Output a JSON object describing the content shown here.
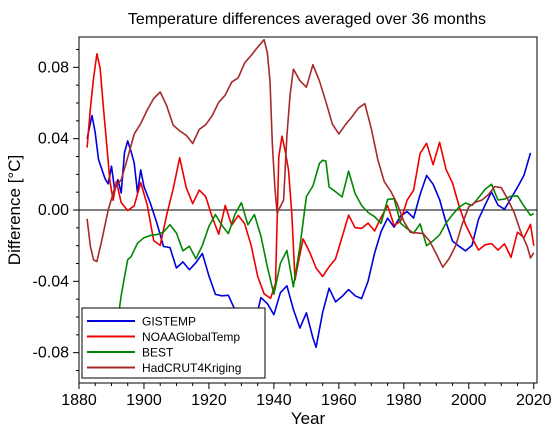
{
  "chart_data": {
    "type": "line",
    "title": "Temperature differences averaged over 36 months",
    "xlabel": "Year",
    "ylabel": "Difference [°C]",
    "xlim": [
      1880,
      2021
    ],
    "ylim": [
      -0.097,
      0.097
    ],
    "x_ticks": [
      1880,
      1900,
      1920,
      1940,
      1960,
      1980,
      2000,
      2020
    ],
    "y_ticks": [
      -0.08,
      -0.04,
      0.0,
      0.04,
      0.08
    ],
    "y_tick_labels": [
      "-0.08",
      "-0.04",
      "0.00",
      "0.04",
      "0.08"
    ],
    "zero_line": true,
    "grid": false,
    "legend_position": "bottom-left",
    "series": [
      {
        "name": "GISTEMP",
        "color": "#0000dd",
        "points": [
          [
            1882.5,
            0.04
          ],
          [
            1884,
            0.052
          ],
          [
            1885,
            0.043
          ],
          [
            1886,
            0.03
          ],
          [
            1888,
            0.02
          ],
          [
            1889,
            0.013
          ],
          [
            1890,
            0.025
          ],
          [
            1891,
            0.012
          ],
          [
            1892,
            0.015
          ],
          [
            1893,
            0.012
          ],
          [
            1894,
            0.03
          ],
          [
            1895,
            0.04
          ],
          [
            1896,
            0.033
          ],
          [
            1897,
            0.025
          ],
          [
            1898,
            0.012
          ],
          [
            1899,
            0.02
          ],
          [
            1900,
            0.015
          ],
          [
            1902,
            0.003
          ],
          [
            1904,
            -0.01
          ],
          [
            1906,
            -0.022
          ],
          [
            1908,
            -0.02
          ],
          [
            1910,
            -0.03
          ],
          [
            1912,
            -0.028
          ],
          [
            1914,
            -0.035
          ],
          [
            1916,
            -0.032
          ],
          [
            1918,
            -0.025
          ],
          [
            1920,
            -0.035
          ],
          [
            1922,
            -0.045
          ],
          [
            1924,
            -0.048
          ],
          [
            1926,
            -0.05
          ],
          [
            1928,
            -0.058
          ],
          [
            1930,
            -0.065
          ],
          [
            1932,
            -0.06
          ],
          [
            1934,
            -0.063
          ],
          [
            1936,
            -0.05
          ],
          [
            1938,
            -0.055
          ],
          [
            1940,
            -0.06
          ],
          [
            1942,
            -0.045
          ],
          [
            1944,
            -0.04
          ],
          [
            1946,
            -0.055
          ],
          [
            1948,
            -0.068
          ],
          [
            1950,
            -0.06
          ],
          [
            1952,
            -0.072
          ],
          [
            1953,
            -0.078
          ],
          [
            1955,
            -0.06
          ],
          [
            1957,
            -0.045
          ],
          [
            1959,
            -0.05
          ],
          [
            1961,
            -0.046
          ],
          [
            1963,
            -0.044
          ],
          [
            1965,
            -0.05
          ],
          [
            1967,
            -0.052
          ],
          [
            1969,
            -0.04
          ],
          [
            1971,
            -0.022
          ],
          [
            1973,
            -0.01
          ],
          [
            1975,
            -0.005
          ],
          [
            1977,
            -0.012
          ],
          [
            1979,
            -0.005
          ],
          [
            1981,
            0.0
          ],
          [
            1983,
            -0.002
          ],
          [
            1985,
            0.01
          ],
          [
            1987,
            0.018
          ],
          [
            1989,
            0.012
          ],
          [
            1991,
            0.005
          ],
          [
            1993,
            -0.005
          ],
          [
            1995,
            -0.015
          ],
          [
            1997,
            -0.02
          ],
          [
            1999,
            -0.025
          ],
          [
            2001,
            -0.022
          ],
          [
            2003,
            -0.005
          ],
          [
            2005,
            0.005
          ],
          [
            2007,
            0.012
          ],
          [
            2009,
            0.002
          ],
          [
            2011,
            -0.002
          ],
          [
            2013,
            0.005
          ],
          [
            2015,
            0.014
          ],
          [
            2017,
            0.022
          ],
          [
            2019,
            0.032
          ]
        ]
      },
      {
        "name": "NOAAGlobalTemp",
        "color": "#ee0000",
        "points": [
          [
            1882.5,
            0.035
          ],
          [
            1883.5,
            0.055
          ],
          [
            1884.5,
            0.075
          ],
          [
            1885.5,
            0.088
          ],
          [
            1886.5,
            0.078
          ],
          [
            1887.5,
            0.06
          ],
          [
            1888.5,
            0.035
          ],
          [
            1889.5,
            0.018
          ],
          [
            1890.5,
            0.005
          ],
          [
            1891.5,
            0.015
          ],
          [
            1893,
            0.005
          ],
          [
            1895,
            -0.002
          ],
          [
            1897,
            0.0
          ],
          [
            1899,
            0.015
          ],
          [
            1901,
            0.005
          ],
          [
            1903,
            -0.015
          ],
          [
            1905,
            -0.02
          ],
          [
            1907,
            -0.005
          ],
          [
            1909,
            0.01
          ],
          [
            1911,
            0.03
          ],
          [
            1913,
            0.015
          ],
          [
            1915,
            0.005
          ],
          [
            1917,
            0.01
          ],
          [
            1919,
            0.005
          ],
          [
            1921,
            -0.005
          ],
          [
            1923,
            -0.012
          ],
          [
            1925,
            0.005
          ],
          [
            1927,
            -0.008
          ],
          [
            1929,
            -0.005
          ],
          [
            1931,
            -0.01
          ],
          [
            1933,
            -0.02
          ],
          [
            1935,
            -0.035
          ],
          [
            1937,
            -0.045
          ],
          [
            1939,
            -0.05
          ],
          [
            1940.5,
            -0.04
          ],
          [
            1941.5,
            0.03
          ],
          [
            1942.5,
            0.04
          ],
          [
            1943.5,
            0.035
          ],
          [
            1944.5,
            0.02
          ],
          [
            1945.5,
            0.0
          ],
          [
            1946.5,
            -0.04
          ],
          [
            1947.5,
            -0.03
          ],
          [
            1949,
            -0.015
          ],
          [
            1951,
            -0.025
          ],
          [
            1953,
            -0.035
          ],
          [
            1955,
            -0.038
          ],
          [
            1957,
            -0.03
          ],
          [
            1959,
            -0.025
          ],
          [
            1961,
            -0.015
          ],
          [
            1963,
            -0.005
          ],
          [
            1965,
            -0.012
          ],
          [
            1967,
            -0.01
          ],
          [
            1969,
            -0.005
          ],
          [
            1971,
            -0.01
          ],
          [
            1973,
            -0.005
          ],
          [
            1975,
            0.0
          ],
          [
            1977,
            -0.01
          ],
          [
            1979,
            -0.005
          ],
          [
            1981,
            0.008
          ],
          [
            1983,
            0.012
          ],
          [
            1985,
            0.03
          ],
          [
            1987,
            0.035
          ],
          [
            1989,
            0.025
          ],
          [
            1991,
            0.04
          ],
          [
            1993,
            0.025
          ],
          [
            1995,
            0.015
          ],
          [
            1997,
            0.0
          ],
          [
            1999,
            -0.01
          ],
          [
            2001,
            -0.015
          ],
          [
            2003,
            -0.02
          ],
          [
            2005,
            -0.018
          ],
          [
            2007,
            -0.02
          ],
          [
            2009,
            -0.025
          ],
          [
            2011,
            -0.02
          ],
          [
            2013,
            -0.025
          ],
          [
            2015,
            -0.01
          ],
          [
            2017,
            -0.015
          ],
          [
            2019,
            -0.01
          ],
          [
            2020,
            -0.02
          ]
        ]
      },
      {
        "name": "BEST",
        "color": "#008800",
        "points": [
          [
            1890,
            -0.08
          ],
          [
            1891,
            -0.072
          ],
          [
            1892,
            -0.06
          ],
          [
            1893,
            -0.05
          ],
          [
            1894,
            -0.035
          ],
          [
            1895,
            -0.03
          ],
          [
            1896,
            -0.025
          ],
          [
            1898,
            -0.02
          ],
          [
            1900,
            -0.018
          ],
          [
            1902,
            -0.015
          ],
          [
            1904,
            -0.012
          ],
          [
            1906,
            -0.01
          ],
          [
            1908,
            -0.008
          ],
          [
            1910,
            -0.015
          ],
          [
            1912,
            -0.025
          ],
          [
            1914,
            -0.02
          ],
          [
            1916,
            -0.025
          ],
          [
            1918,
            -0.018
          ],
          [
            1920,
            -0.01
          ],
          [
            1922,
            -0.005
          ],
          [
            1924,
            -0.01
          ],
          [
            1926,
            -0.012
          ],
          [
            1928,
            0.0
          ],
          [
            1930,
            0.005
          ],
          [
            1932,
            -0.01
          ],
          [
            1934,
            -0.005
          ],
          [
            1936,
            -0.015
          ],
          [
            1938,
            -0.03
          ],
          [
            1940,
            -0.045
          ],
          [
            1941,
            -0.04
          ],
          [
            1942,
            -0.03
          ],
          [
            1944,
            -0.025
          ],
          [
            1946,
            -0.045
          ],
          [
            1948,
            -0.02
          ],
          [
            1950,
            0.01
          ],
          [
            1952,
            0.015
          ],
          [
            1954,
            0.025
          ],
          [
            1955,
            0.03
          ],
          [
            1956,
            0.025
          ],
          [
            1957,
            0.015
          ],
          [
            1959,
            0.01
          ],
          [
            1961,
            0.005
          ],
          [
            1963,
            0.02
          ],
          [
            1965,
            0.01
          ],
          [
            1967,
            0.005
          ],
          [
            1969,
            0.0
          ],
          [
            1971,
            -0.005
          ],
          [
            1973,
            -0.01
          ],
          [
            1975,
            0.005
          ],
          [
            1977,
            0.008
          ],
          [
            1979,
            -0.005
          ],
          [
            1981,
            -0.01
          ],
          [
            1983,
            -0.015
          ],
          [
            1985,
            -0.01
          ],
          [
            1987,
            -0.02
          ],
          [
            1989,
            -0.015
          ],
          [
            1991,
            -0.012
          ],
          [
            1993,
            -0.008
          ],
          [
            1995,
            -0.005
          ],
          [
            1997,
            0.0
          ],
          [
            1999,
            0.005
          ],
          [
            2001,
            0.005
          ],
          [
            2003,
            0.008
          ],
          [
            2005,
            0.01
          ],
          [
            2007,
            0.012
          ],
          [
            2009,
            0.005
          ],
          [
            2011,
            0.008
          ],
          [
            2013,
            0.01
          ],
          [
            2015,
            0.008
          ],
          [
            2017,
            0.0
          ],
          [
            2019,
            -0.005
          ],
          [
            2020,
            -0.002
          ]
        ]
      },
      {
        "name": "HadCRUT4Kriging",
        "color": "#a52a2a",
        "points": [
          [
            1882.5,
            -0.005
          ],
          [
            1883.5,
            -0.018
          ],
          [
            1884.5,
            -0.03
          ],
          [
            1885.5,
            -0.028
          ],
          [
            1887,
            -0.015
          ],
          [
            1889,
            0.0
          ],
          [
            1891,
            0.01
          ],
          [
            1893,
            0.015
          ],
          [
            1895,
            0.03
          ],
          [
            1897,
            0.045
          ],
          [
            1899,
            0.05
          ],
          [
            1901,
            0.055
          ],
          [
            1903,
            0.06
          ],
          [
            1905,
            0.065
          ],
          [
            1907,
            0.06
          ],
          [
            1909,
            0.05
          ],
          [
            1911,
            0.045
          ],
          [
            1913,
            0.04
          ],
          [
            1915,
            0.035
          ],
          [
            1917,
            0.045
          ],
          [
            1919,
            0.05
          ],
          [
            1921,
            0.055
          ],
          [
            1923,
            0.06
          ],
          [
            1925,
            0.062
          ],
          [
            1927,
            0.07
          ],
          [
            1929,
            0.075
          ],
          [
            1931,
            0.085
          ],
          [
            1933,
            0.088
          ],
          [
            1935,
            0.09
          ],
          [
            1937,
            0.093
          ],
          [
            1938,
            0.09
          ],
          [
            1938.8,
            0.07
          ],
          [
            1939.5,
            0.04
          ],
          [
            1940.3,
            0.01
          ],
          [
            1941,
            0.0
          ],
          [
            1943,
            0.008
          ],
          [
            1944,
            0.04
          ],
          [
            1945,
            0.065
          ],
          [
            1946,
            0.08
          ],
          [
            1948,
            0.075
          ],
          [
            1950,
            0.07
          ],
          [
            1952,
            0.08
          ],
          [
            1954,
            0.07
          ],
          [
            1956,
            0.06
          ],
          [
            1958,
            0.05
          ],
          [
            1960,
            0.045
          ],
          [
            1962,
            0.048
          ],
          [
            1964,
            0.05
          ],
          [
            1966,
            0.055
          ],
          [
            1968,
            0.06
          ],
          [
            1970,
            0.048
          ],
          [
            1972,
            0.03
          ],
          [
            1974,
            0.015
          ],
          [
            1976,
            0.008
          ],
          [
            1978,
            0.002
          ],
          [
            1980,
            -0.005
          ],
          [
            1982,
            -0.01
          ],
          [
            1984,
            -0.012
          ],
          [
            1986,
            -0.015
          ],
          [
            1988,
            -0.02
          ],
          [
            1990,
            -0.025
          ],
          [
            1992,
            -0.03
          ],
          [
            1994,
            -0.025
          ],
          [
            1996,
            -0.02
          ],
          [
            1998,
            -0.01
          ],
          [
            2000,
            0.0
          ],
          [
            2002,
            0.005
          ],
          [
            2004,
            0.008
          ],
          [
            2006,
            0.01
          ],
          [
            2008,
            0.012
          ],
          [
            2010,
            0.01
          ],
          [
            2012,
            0.005
          ],
          [
            2014,
            0.0
          ],
          [
            2016,
            -0.01
          ],
          [
            2018,
            -0.02
          ],
          [
            2019,
            -0.026
          ],
          [
            2020,
            -0.024
          ]
        ]
      }
    ]
  }
}
